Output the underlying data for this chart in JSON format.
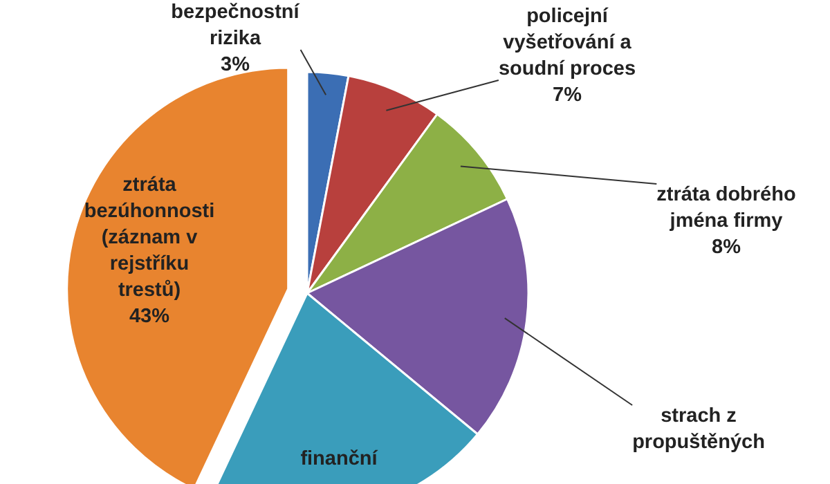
{
  "chart_data": {
    "type": "pie",
    "categories": [
      "bezpečnostní rizika",
      "policejní vyšetřování a soudní proces",
      "ztráta dobrého jména firmy",
      "strach z propuštěných",
      "finanční",
      "ztráta bezúhonnosti (záznam v rejstříku trestů)"
    ],
    "values": [
      3,
      7,
      8,
      18,
      21,
      43
    ],
    "colors": [
      "#3b6eb4",
      "#b8403d",
      "#8db046",
      "#7656a0",
      "#3a9dbb",
      "#e8842f"
    ],
    "value_labels": [
      "3%",
      "7%",
      "8%",
      null,
      null,
      "43%"
    ]
  }
}
